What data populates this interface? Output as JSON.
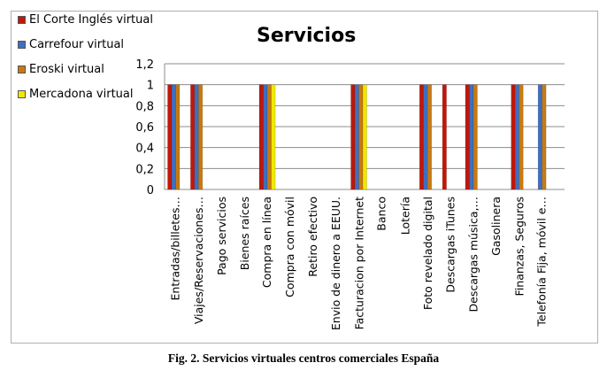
{
  "chart_data": {
    "type": "bar",
    "title": "Servicios",
    "xlabel": "",
    "ylabel": "",
    "ylim": [
      0,
      1.2
    ],
    "yticks": [
      "0",
      "0,2",
      "0,4",
      "0,6",
      "0,8",
      "1",
      "1,2"
    ],
    "grid": true,
    "legend_position": "top-left",
    "categories": [
      "Entradas/billetes…",
      "Viajes/Reservaciones…",
      "Pago servicios",
      "Bienes raíces",
      "Compra en línea",
      "Compra con móvil",
      "Retiro efectivo",
      "Envio de dinero a EEUU.",
      "Facturacion por Internet",
      "Banco",
      "Lotería",
      "Foto revelado digital",
      "Descargas iTunes",
      "Descargas música,…",
      "Gasolinera",
      "Finanzas, Seguros",
      "Telefonía Fija, móvil e…"
    ],
    "series": [
      {
        "name": "El Corte Inglés virtual",
        "color": "#c0170b",
        "values": [
          1,
          1,
          0,
          0,
          1,
          0,
          0,
          0,
          1,
          0,
          0,
          1,
          1,
          1,
          0,
          1,
          0
        ]
      },
      {
        "name": "Carrefour virtual",
        "color": "#3f6fbf",
        "values": [
          1,
          1,
          0,
          0,
          1,
          0,
          0,
          0,
          1,
          0,
          0,
          1,
          0,
          1,
          0,
          1,
          1
        ]
      },
      {
        "name": "Eroski virtual",
        "color": "#c77a12",
        "values": [
          1,
          1,
          0,
          0,
          1,
          0,
          0,
          0,
          1,
          0,
          0,
          1,
          0,
          1,
          0,
          1,
          1
        ]
      },
      {
        "name": "Mercadona virtual",
        "color": "#f0e800",
        "values": [
          0,
          0,
          0,
          0,
          1,
          0,
          0,
          0,
          1,
          0,
          0,
          0,
          0,
          0,
          0,
          0,
          0
        ]
      }
    ]
  },
  "caption": "Fig. 2.  Servicios virtuales centros comerciales España"
}
